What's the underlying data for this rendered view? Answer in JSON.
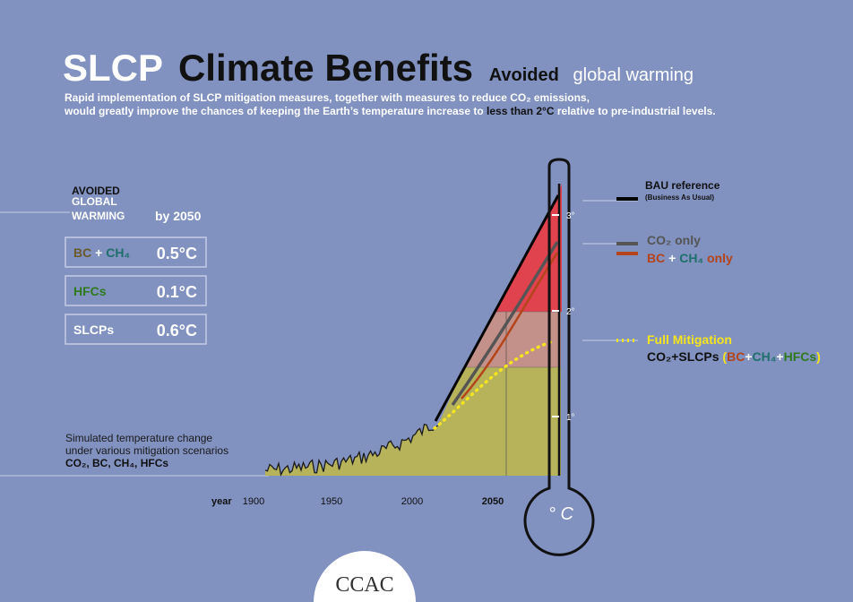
{
  "header": {
    "title_a": "SLCP",
    "title_b": "Climate Benefits",
    "tagline_a": "Avoided",
    "tagline_b": "global warming",
    "subtitle_1": "Rapid implementation of SLCP mitigation measures, together with measures to reduce CO₂ emissions,",
    "subtitle_2a": "would greatly improve the chances of keeping the Earth’s temperature increase to ",
    "subtitle_2b": "less than 2°C",
    "subtitle_2c": " relative to pre-industrial levels."
  },
  "panel": {
    "heading": [
      "AVOIDED",
      "GLOBAL",
      "WARMING"
    ],
    "period": "by 2050",
    "rows": [
      {
        "label": [
          "BC",
          " + ",
          "CH₄"
        ],
        "value": "0.5°C"
      },
      {
        "label": [
          "HFCs"
        ],
        "value": "0.1°C"
      },
      {
        "label": [
          "SLCPs"
        ],
        "value": "0.6°C"
      }
    ]
  },
  "note": [
    "Simulated temperature change",
    "under various mitigation scenarios",
    "CO₂, BC, CH₄, HFCs"
  ],
  "axis": {
    "x_title": "year",
    "x_ticks": [
      "1900",
      "1950",
      "2000",
      "2050"
    ],
    "y_ticks": [
      "1°",
      "2°",
      "3°"
    ],
    "unit": "° C"
  },
  "legend": {
    "bau": "BAU reference",
    "bau_note": "(Business As Usual)",
    "co2": "CO₂ only",
    "bcch4": [
      "BC",
      " + ",
      "CH₄",
      " only"
    ],
    "full": "Full Mitigation",
    "full_detail": [
      "CO₂+SLCPs",
      " (",
      "BC",
      "+",
      "CH₄",
      "+",
      "HFCs",
      ")"
    ]
  },
  "footer": {
    "logo": "CCAC"
  }
}
